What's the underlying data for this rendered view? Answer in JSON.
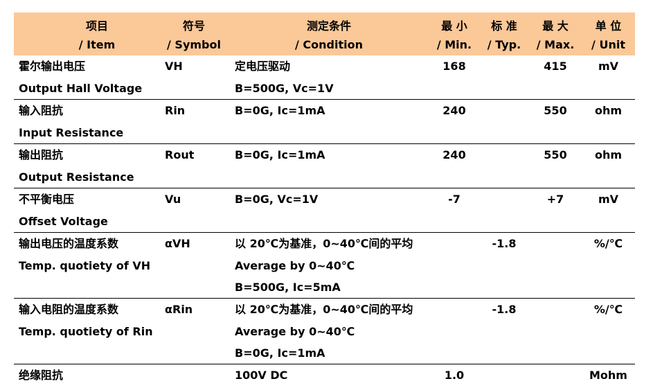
{
  "header": {
    "item": {
      "cn": "项目",
      "en": "/ Item"
    },
    "symbol": {
      "cn": "符号",
      "en": "/ Symbol"
    },
    "condition": {
      "cn": "测定条件",
      "en": "/ Condition"
    },
    "min": {
      "cn": "最 小",
      "en": "/ Min."
    },
    "typ": {
      "cn": "标 准",
      "en": "/ Typ."
    },
    "max": {
      "cn": "最 大",
      "en": "/ Max."
    },
    "unit": {
      "cn": "单 位",
      "en": "/ Unit"
    }
  },
  "rows": [
    {
      "item": [
        "霍尔输出电压",
        "Output Hall Voltage"
      ],
      "symbol": "VH",
      "condition": [
        "定电压驱动",
        "B=500G, Vc=1V"
      ],
      "min": "168",
      "typ": "",
      "max": "415",
      "unit": "mV"
    },
    {
      "item": [
        "输入阻抗",
        "Input Resistance"
      ],
      "symbol": "Rin",
      "condition": [
        "B=0G, Ic=1mA"
      ],
      "min": "240",
      "typ": "",
      "max": "550",
      "unit": "ohm"
    },
    {
      "item": [
        "输出阻抗",
        "Output Resistance"
      ],
      "symbol": "Rout",
      "condition": [
        "B=0G, Ic=1mA"
      ],
      "min": "240",
      "typ": "",
      "max": "550",
      "unit": "ohm"
    },
    {
      "item": [
        "不平衡电压",
        "Offset Voltage"
      ],
      "symbol": "Vu",
      "condition": [
        "B=0G, Vc=1V"
      ],
      "min": "-7",
      "typ": "",
      "max": "+7",
      "unit": "mV"
    },
    {
      "item": [
        "输出电压的温度系数",
        "Temp. quotiety of VH"
      ],
      "symbol": "αVH",
      "condition": [
        "以 20℃为基准，0~40℃间的平均",
        "Average by 0~40℃",
        "B=500G, Ic=5mA"
      ],
      "min": "",
      "typ": "-1.8",
      "max": "",
      "unit": "%/℃"
    },
    {
      "item": [
        "输入电阻的温度系数",
        "Temp. quotiety of Rin"
      ],
      "symbol": "αRin",
      "condition": [
        "以 20℃为基准，0~40℃间的平均",
        "Average by 0~40℃",
        "B=0G, Ic=1mA"
      ],
      "min": "",
      "typ": "-1.8",
      "max": "",
      "unit": "%/℃"
    },
    {
      "item": [
        "绝缘阻抗"
      ],
      "symbol": "",
      "condition": [
        "100V DC"
      ],
      "min": "1.0",
      "typ": "",
      "max": "",
      "unit": "Mohm"
    }
  ]
}
